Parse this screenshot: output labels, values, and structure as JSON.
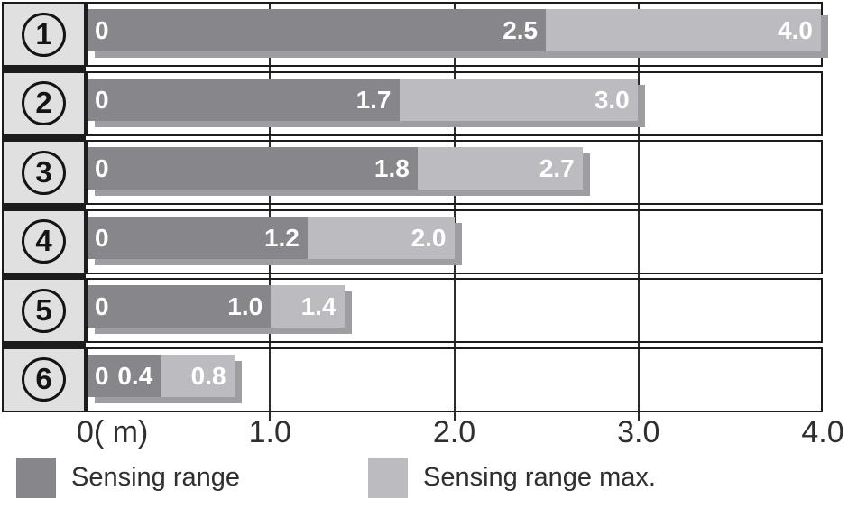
{
  "chart_data": {
    "type": "bar",
    "orientation": "horizontal-stacked",
    "unit": "m",
    "xlim": [
      0,
      4
    ],
    "grid": true,
    "gridline_values": [
      1,
      2,
      3
    ],
    "x_ticks": [
      {
        "value": 0,
        "label": "0( m)"
      },
      {
        "value": 1,
        "label": "1.0"
      },
      {
        "value": 2,
        "label": "2.0"
      },
      {
        "value": 3,
        "label": "3.0"
      },
      {
        "value": 4,
        "label": "4.0"
      }
    ],
    "categories": [
      "1",
      "2",
      "3",
      "4",
      "5",
      "6"
    ],
    "series": [
      {
        "name": "Sensing range",
        "values": [
          2.5,
          1.7,
          1.8,
          1.2,
          1.0,
          0.4
        ]
      },
      {
        "name": "Sensing range max.",
        "values": [
          4.0,
          3.0,
          2.7,
          2.0,
          1.4,
          0.8
        ]
      }
    ],
    "rows": [
      {
        "category": "1",
        "zero_label": "0",
        "sensing_range": 2.5,
        "sensing_range_label": "2.5",
        "sensing_range_max": 4.0,
        "sensing_range_max_label": "4.0"
      },
      {
        "category": "2",
        "zero_label": "0",
        "sensing_range": 1.7,
        "sensing_range_label": "1.7",
        "sensing_range_max": 3.0,
        "sensing_range_max_label": "3.0"
      },
      {
        "category": "3",
        "zero_label": "0",
        "sensing_range": 1.8,
        "sensing_range_label": "1.8",
        "sensing_range_max": 2.7,
        "sensing_range_max_label": "2.7"
      },
      {
        "category": "4",
        "zero_label": "0",
        "sensing_range": 1.2,
        "sensing_range_label": "1.2",
        "sensing_range_max": 2.0,
        "sensing_range_max_label": "2.0"
      },
      {
        "category": "5",
        "zero_label": "0",
        "sensing_range": 1.0,
        "sensing_range_label": "1.0",
        "sensing_range_max": 1.4,
        "sensing_range_max_label": "1.4"
      },
      {
        "category": "6",
        "zero_label": "0",
        "sensing_range": 0.4,
        "sensing_range_label": "0.4",
        "sensing_range_max": 0.8,
        "sensing_range_max_label": "0.8"
      }
    ],
    "legend": [
      {
        "label": "Sensing range",
        "color": "#86868b"
      },
      {
        "label": "Sensing range max.",
        "color": "#bcbcc0"
      }
    ],
    "legend_position": "bottom"
  },
  "colors": {
    "bar_dark": "#86868b",
    "bar_light": "#bcbcc0",
    "bar_shadow": "#9d9da2",
    "label_cell_bg": "#e0e0e1",
    "border": "#1c1c1c",
    "text": "#2f2f2f"
  }
}
